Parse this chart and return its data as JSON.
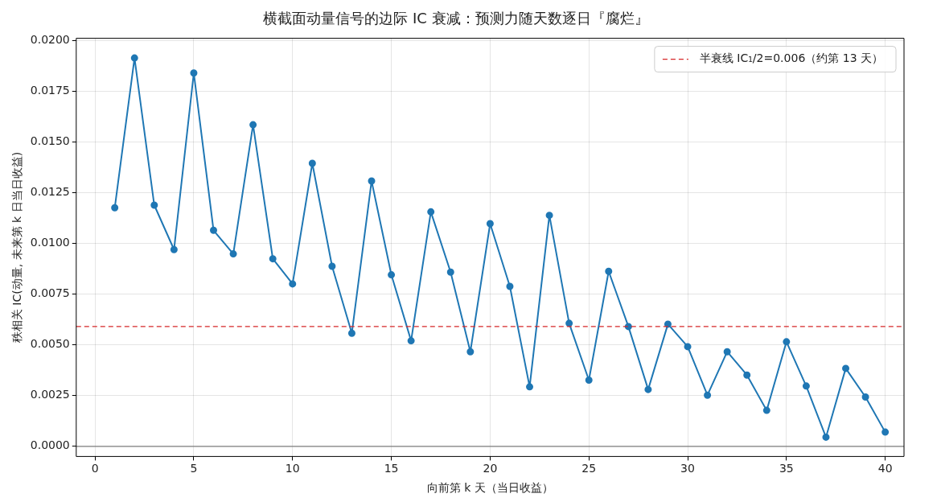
{
  "chart_data": {
    "type": "line",
    "title": "横截面动量信号的边际 IC 衰减：预测力随天数逐日『腐烂』",
    "xlabel": "向前第 k 天（当日收益）",
    "ylabel": "秩相关 IC(动量, 未来第 k 日当日收益)",
    "x": [
      1,
      2,
      3,
      4,
      5,
      6,
      7,
      8,
      9,
      10,
      11,
      12,
      13,
      14,
      15,
      16,
      17,
      18,
      19,
      20,
      21,
      22,
      23,
      24,
      25,
      26,
      27,
      28,
      29,
      30,
      31,
      32,
      33,
      34,
      35,
      36,
      37,
      38,
      39,
      40
    ],
    "series": [
      {
        "color": "#1f77b4",
        "values": [
          0.01175,
          0.01913,
          0.01188,
          0.00969,
          0.01839,
          0.01064,
          0.00948,
          0.01584,
          0.00924,
          0.008,
          0.01394,
          0.00887,
          0.00557,
          0.01307,
          0.00845,
          0.0052,
          0.01155,
          0.00858,
          0.00466,
          0.01097,
          0.00788,
          0.00293,
          0.01138,
          0.00606,
          0.00326,
          0.00862,
          0.0059,
          0.0028,
          0.00602,
          0.00491,
          0.00252,
          0.00466,
          0.00351,
          0.00177,
          0.00515,
          0.00297,
          0.00045,
          0.00384,
          0.00243,
          0.0007
        ]
      }
    ],
    "xlim": [
      -0.95,
      40.95
    ],
    "xticks": [
      0,
      5,
      10,
      15,
      20,
      25,
      30,
      35,
      40
    ],
    "ylim": [
      -0.0005,
      0.0201
    ],
    "yticks": [
      {
        "value": 0,
        "label": "0.0000"
      },
      {
        "value": 0.0025,
        "label": "0.0025"
      },
      {
        "value": 0.005,
        "label": "0.0050"
      },
      {
        "value": 0.0075,
        "label": "0.0075"
      },
      {
        "value": 0.01,
        "label": "0.0100"
      },
      {
        "value": 0.0125,
        "label": "0.0125"
      },
      {
        "value": 0.015,
        "label": "0.0150"
      },
      {
        "value": 0.0175,
        "label": "0.0175"
      },
      {
        "value": 0.02,
        "label": "0.0200"
      }
    ],
    "ref_lines": [
      {
        "axis": "y",
        "value": 0,
        "color": "#808080",
        "line_style": "solid"
      },
      {
        "axis": "y",
        "value": 0.0059,
        "label": "半衰线 IC₁/2=0.006（约第 13 天）",
        "color": "#d62728",
        "line_style": "dashed"
      }
    ],
    "grid": true,
    "legend": "top right",
    "marker": "circle",
    "line_style": "solid"
  }
}
